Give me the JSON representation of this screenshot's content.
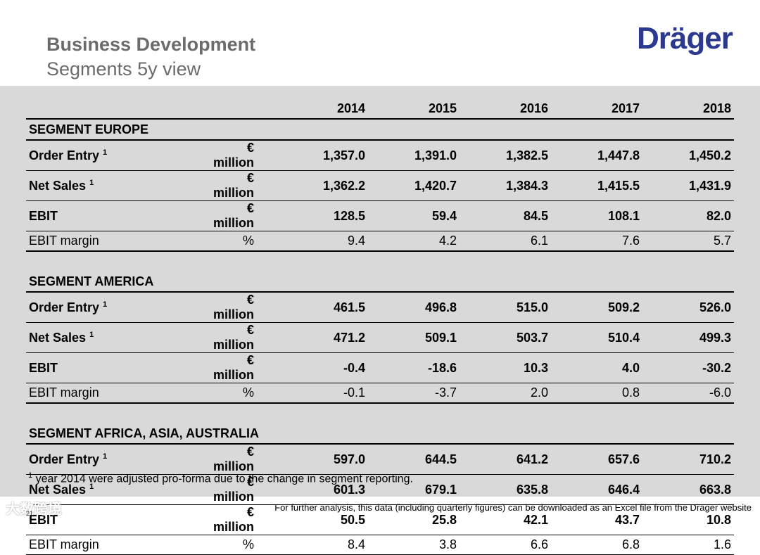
{
  "header": {
    "title": "Business Development",
    "subtitle": "Segments 5y view",
    "logo_text": "Dräger"
  },
  "table": {
    "years": [
      "2014",
      "2015",
      "2016",
      "2017",
      "2018"
    ],
    "segments": [
      {
        "name": "SEGMENT EUROPE",
        "rows": [
          {
            "label": "Order Entry",
            "sup": "1",
            "unit": "€ million",
            "bold": true,
            "values": [
              "1,357.0",
              "1,391.0",
              "1,382.5",
              "1,447.8",
              "1,450.2"
            ]
          },
          {
            "label": "Net Sales",
            "sup": "1",
            "unit": "€ million",
            "bold": true,
            "values": [
              "1,362.2",
              "1,420.7",
              "1,384.3",
              "1,415.5",
              "1,431.9"
            ]
          },
          {
            "label": "EBIT",
            "sup": "",
            "unit": "€ million",
            "bold": true,
            "values": [
              "128.5",
              "59.4",
              "84.5",
              "108.1",
              "82.0"
            ]
          },
          {
            "label": "EBIT margin",
            "sup": "",
            "unit": "%",
            "bold": false,
            "values": [
              "9.4",
              "4.2",
              "6.1",
              "7.6",
              "5.7"
            ]
          }
        ]
      },
      {
        "name": "SEGMENT AMERICA",
        "rows": [
          {
            "label": "Order Entry",
            "sup": "1",
            "unit": "€ million",
            "bold": true,
            "values": [
              "461.5",
              "496.8",
              "515.0",
              "509.2",
              "526.0"
            ]
          },
          {
            "label": "Net Sales",
            "sup": "1",
            "unit": "€ million",
            "bold": true,
            "values": [
              "471.2",
              "509.1",
              "503.7",
              "510.4",
              "499.3"
            ]
          },
          {
            "label": "EBIT",
            "sup": "",
            "unit": "€ million",
            "bold": true,
            "values": [
              "-0.4",
              "-18.6",
              "10.3",
              "4.0",
              "-30.2"
            ]
          },
          {
            "label": "EBIT margin",
            "sup": "",
            "unit": "%",
            "bold": false,
            "values": [
              "-0.1",
              "-3.7",
              "2.0",
              "0.8",
              "-6.0"
            ]
          }
        ]
      },
      {
        "name": "SEGMENT AFRICA, ASIA, AUSTRALIA",
        "rows": [
          {
            "label": "Order Entry",
            "sup": "1",
            "unit": "€ million",
            "bold": true,
            "values": [
              "597.0",
              "644.5",
              "641.2",
              "657.6",
              "710.2"
            ]
          },
          {
            "label": "Net Sales",
            "sup": "1",
            "unit": "€ million",
            "bold": true,
            "values": [
              "601.3",
              "679.1",
              "635.8",
              "646.4",
              "663.8"
            ]
          },
          {
            "label": "EBIT",
            "sup": "",
            "unit": "€ million",
            "bold": true,
            "values": [
              "50.5",
              "25.8",
              "42.1",
              "43.7",
              "10.8"
            ]
          },
          {
            "label": "EBIT margin",
            "sup": "",
            "unit": "%",
            "bold": false,
            "values": [
              "8.4",
              "3.8",
              "6.6",
              "6.8",
              "1.6"
            ]
          }
        ]
      }
    ]
  },
  "footnote": {
    "sup": "1",
    "text": "year 2014 were adjusted pro-forma due to the change in segment reporting."
  },
  "footer": {
    "page_number": "21",
    "watermark": "大数跨境",
    "note": "For further analysis, this data (including quarterly figures) can be downloaded as an Excel file from the Dräger website"
  }
}
